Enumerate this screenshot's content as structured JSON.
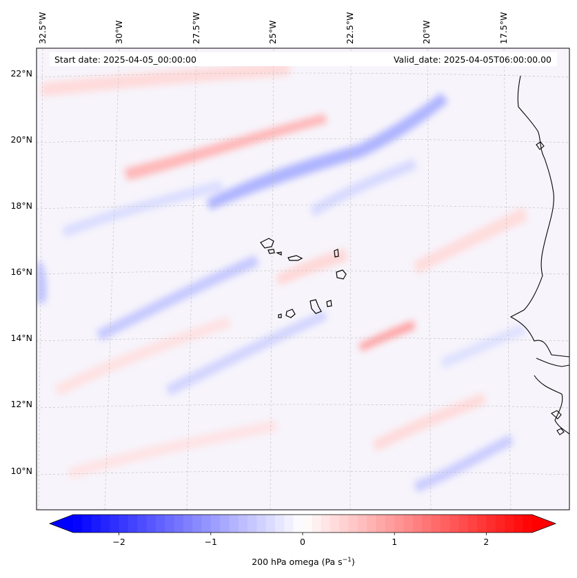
{
  "header": {
    "start_date": "Start date: 2025-04-05_00:00:00",
    "valid_date": "Valid_date: 2025-04-05T06:00:00.00"
  },
  "axes": {
    "lon_labels": [
      "32.5°W",
      "30°W",
      "27.5°W",
      "25°W",
      "22.5°W",
      "20°W",
      "17.5°W"
    ],
    "lat_labels": [
      "22°N",
      "20°N",
      "18°N",
      "16°N",
      "14°N",
      "12°N",
      "10°N"
    ]
  },
  "colorbar": {
    "ticks": [
      "−2",
      "−1",
      "0",
      "1",
      "2"
    ],
    "tick_values": [
      -2,
      -1,
      0,
      1,
      2
    ],
    "range": [
      -2.5,
      2.5
    ],
    "label": "200 hPa omega (Pa s",
    "label_sup": "−1",
    "label_end": ")",
    "colors": {
      "min": "#0000ff",
      "mid": "#ffffff",
      "max": "#ff0000"
    }
  },
  "map": {
    "coastline_color": "#000000",
    "gridline_color": "#bbbbbb"
  }
}
